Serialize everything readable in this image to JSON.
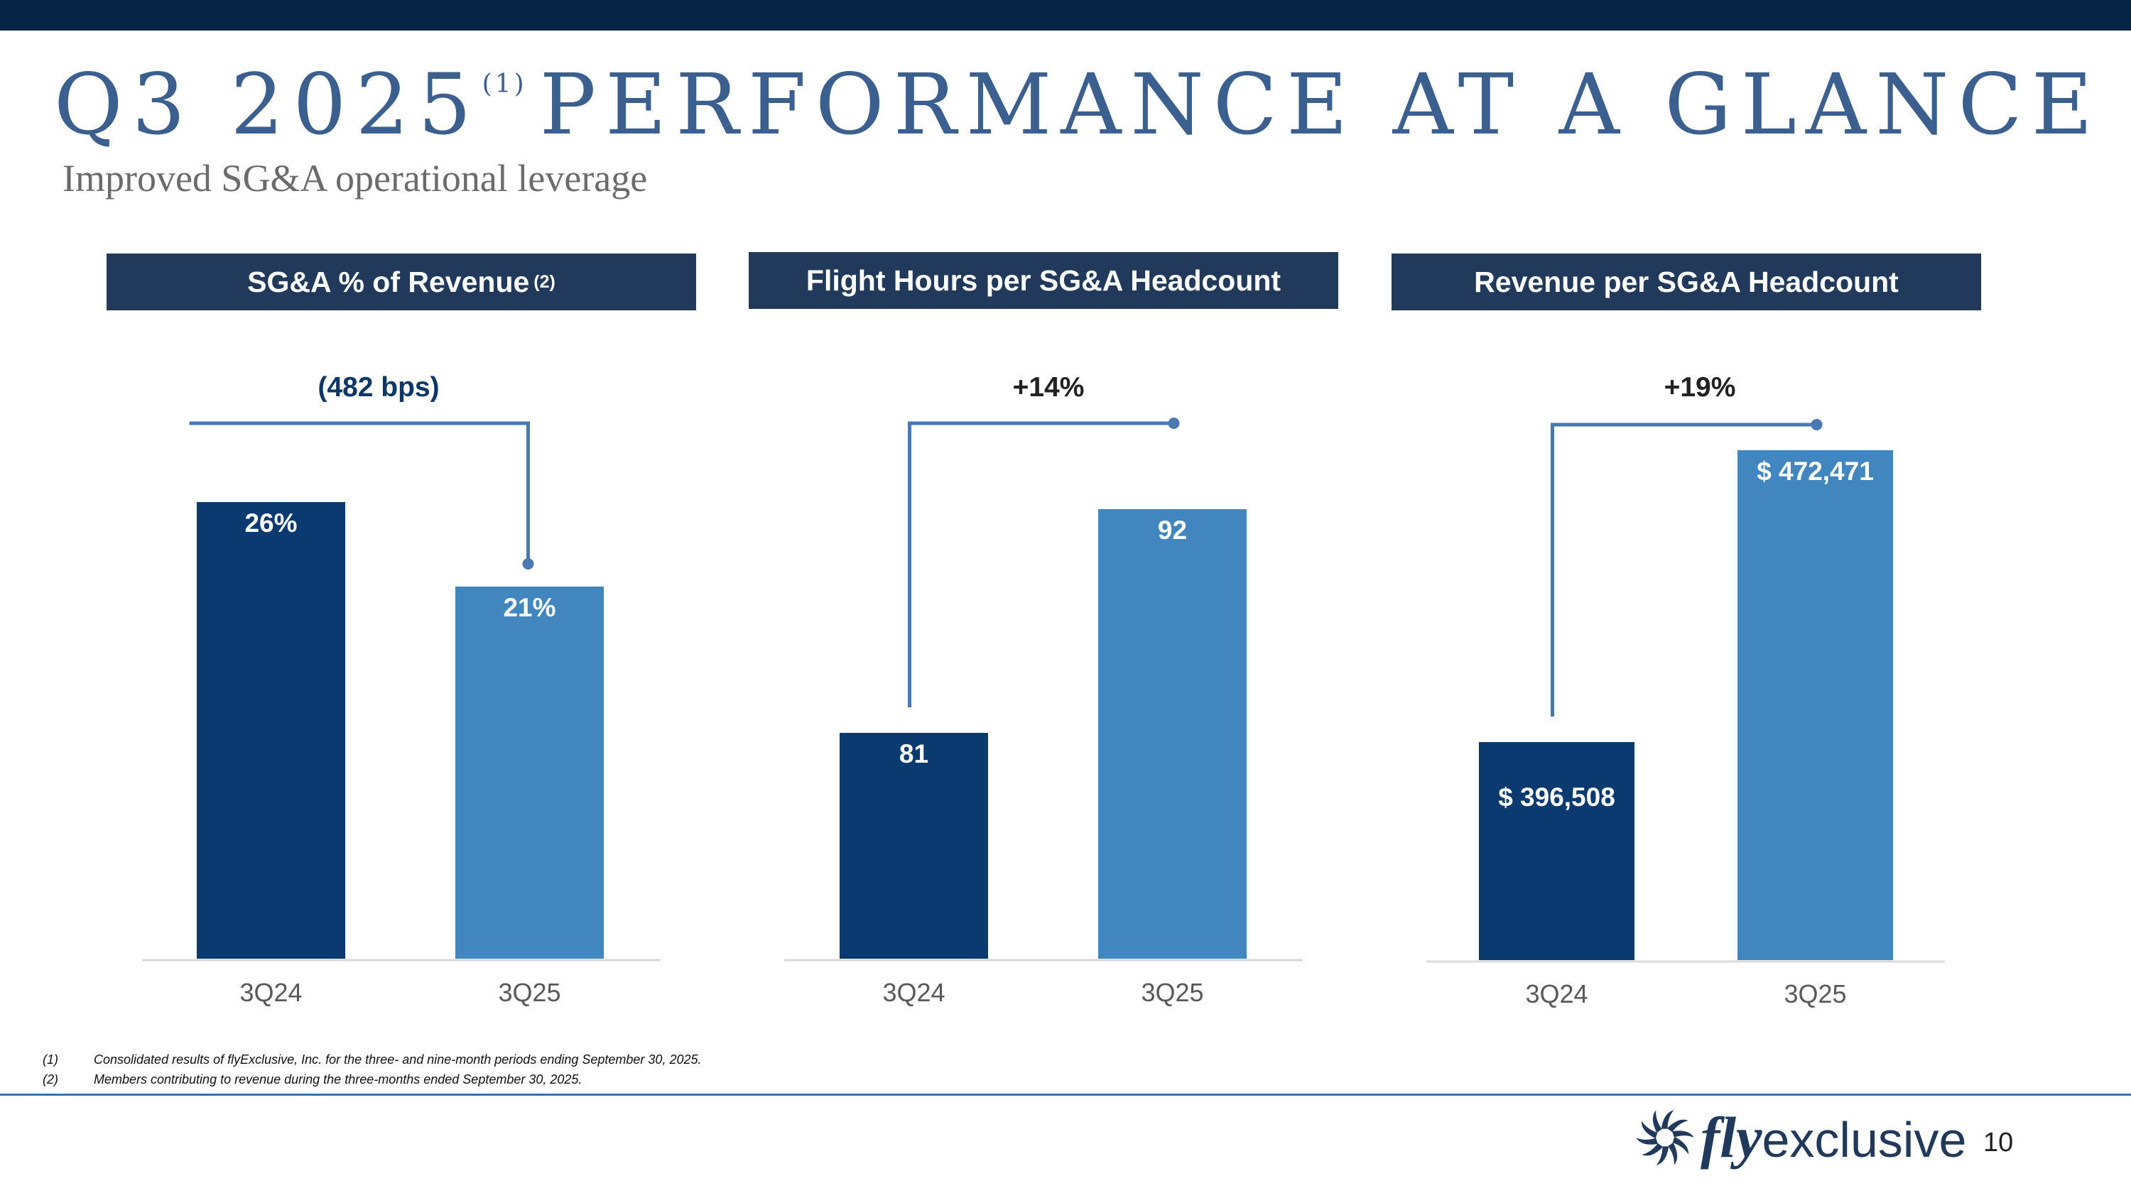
{
  "slide": {
    "title": "Q3 2025",
    "title_sup": "(1)",
    "title_rest": "PERFORMANCE AT A GLANCE",
    "subtitle": "Improved SG&A operational leverage",
    "page_number": "10"
  },
  "colors": {
    "dark_bar": "#0b3a70",
    "light_bar": "#4186bf",
    "header_bg": "#213a5c",
    "bracket": "#4a78b0"
  },
  "panels": [
    {
      "header": "SG&A % of Revenue",
      "header_sup": "(2)"
    },
    {
      "header": "Flight Hours per SG&A Headcount",
      "header_sup": ""
    },
    {
      "header": "Revenue per SG&A Headcount",
      "header_sup": ""
    }
  ],
  "chart_data": [
    {
      "type": "bar",
      "title": "SG&A % of Revenue (2)",
      "categories": [
        "3Q24",
        "3Q25"
      ],
      "values": [
        26,
        21
      ],
      "labels": [
        "26%",
        "21%"
      ],
      "change_label": "(482 bps)",
      "ylim": [
        0,
        30
      ]
    },
    {
      "type": "bar",
      "title": "Flight Hours per SG&A Headcount",
      "categories": [
        "3Q24",
        "3Q25"
      ],
      "values": [
        81,
        92
      ],
      "labels": [
        "81",
        "92"
      ],
      "change_label": "+14%",
      "ylim": [
        65,
        100
      ]
    },
    {
      "type": "bar",
      "title": "Revenue per SG&A Headcount",
      "categories": [
        "3Q24",
        "3Q25"
      ],
      "values": [
        396508,
        472471
      ],
      "labels": [
        "$ 396,508",
        "$ 472,471"
      ],
      "change_label": "+19%",
      "ylim": [
        320000,
        500000
      ]
    }
  ],
  "footnotes": [
    {
      "num": "(1)",
      "text": "Consolidated results of flyExclusive, Inc. for the three- and nine-month periods ending September 30, 2025."
    },
    {
      "num": "(2)",
      "text": "Members contributing to revenue during the three-months ended September 30, 2025."
    }
  ],
  "logo": {
    "fly": "fly",
    "exclusive": "exclusive"
  },
  "icons": {
    "logo_mark": "sun-swirl-logo-icon"
  }
}
